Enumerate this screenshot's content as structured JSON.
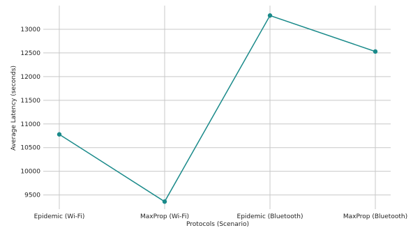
{
  "chart_data": {
    "type": "line",
    "title": "",
    "xlabel": "Protocols (Scenario)",
    "ylabel": "Average Latency (seconds)",
    "categories": [
      "Epidemic (Wi-Fi)",
      "MaxProp (Wi-Fi)",
      "Epidemic (Bluetooth)",
      "MaxProp (Bluetooth)"
    ],
    "series": [
      {
        "values": [
          10780,
          9360,
          13290,
          12530
        ],
        "color": "#1a8a8a"
      }
    ],
    "ylim": [
      9200,
      13500
    ],
    "yticks": [
      9500,
      10000,
      10500,
      11000,
      11500,
      12000,
      12500,
      13000
    ],
    "grid": true,
    "marker": "circle"
  }
}
